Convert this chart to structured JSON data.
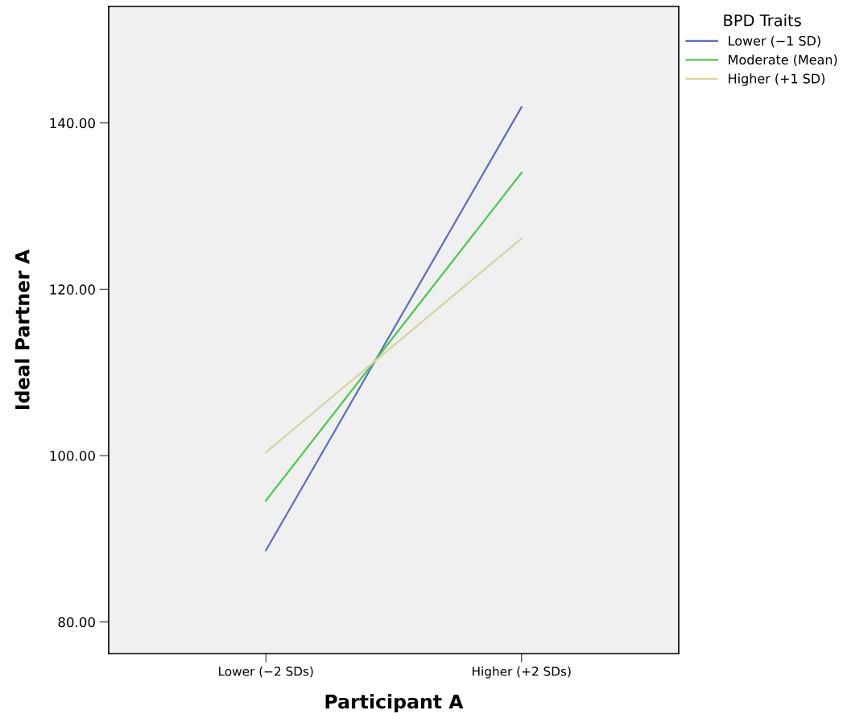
{
  "chart_data": {
    "type": "line",
    "xlabel": "Participant A",
    "ylabel": "Ideal Partner A",
    "legend_title": "BPD Traits",
    "categories": [
      "Lower (−2 SDs)",
      "Higher (+2 SDs)"
    ],
    "series": [
      {
        "name": "Lower (−1 SD)",
        "color": "#5b6fc2",
        "values": [
          88.6,
          141.9
        ]
      },
      {
        "name": "Moderate (Mean)",
        "color": "#4cc84c",
        "values": [
          94.6,
          134.0
        ]
      },
      {
        "name": "Higher (+1 SD)",
        "color": "#d8d3a2",
        "values": [
          100.4,
          126.1
        ]
      }
    ],
    "ylim": [
      76.2,
      154.0
    ],
    "yticks": [
      {
        "value": 80,
        "label": "80.00"
      },
      {
        "value": 100,
        "label": "100.00"
      },
      {
        "value": 120,
        "label": "120.00"
      },
      {
        "value": 140,
        "label": "140.00"
      }
    ],
    "grid": false,
    "legend": "top right",
    "marker": "none",
    "line_style": "solid"
  }
}
